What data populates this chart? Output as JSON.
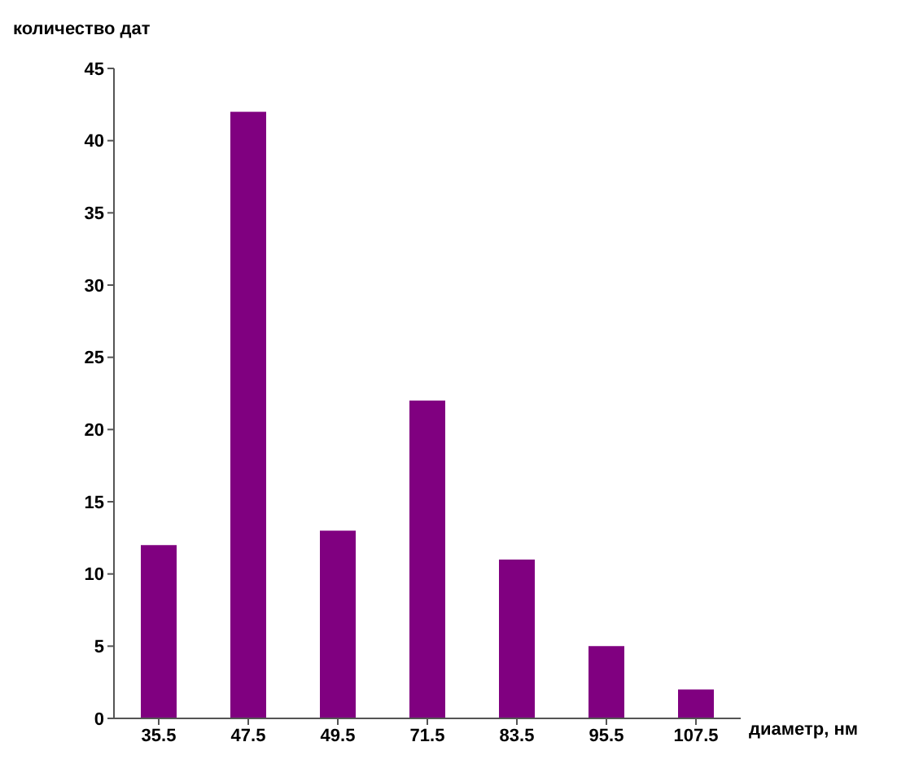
{
  "chart_data": {
    "type": "bar",
    "ylabel": "количество дат",
    "xlabel": "диаметр, нм",
    "categories": [
      "35.5",
      "47.5",
      "49.5",
      "71.5",
      "83.5",
      "95.5",
      "107.5"
    ],
    "values": [
      12,
      42,
      13,
      22,
      11,
      5,
      2
    ],
    "color": "#800080",
    "ylim": [
      0,
      45
    ],
    "yticks": [
      0,
      5,
      10,
      15,
      20,
      25,
      30,
      35,
      40,
      45
    ],
    "grid": false,
    "legend": false
  }
}
